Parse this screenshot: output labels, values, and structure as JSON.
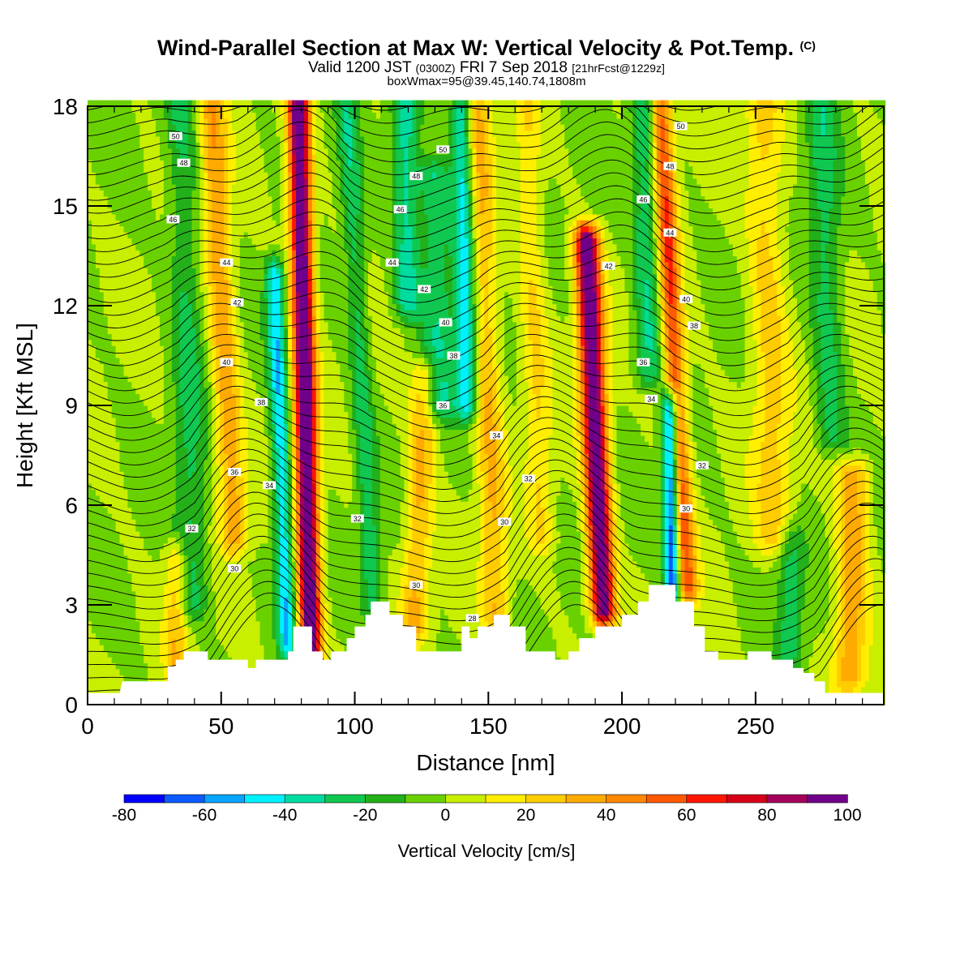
{
  "title": {
    "main": "Wind-Parallel Section at Max W: Vertical Velocity & Pot.Temp.",
    "copyright": "(C)",
    "valid_prefix": "Valid 1200 JST",
    "valid_utc": "(0300Z)",
    "valid_date": "FRI 7 Sep 2018",
    "forecast": "[21hrFcst@1229z]",
    "box": "boxWmax=95@39.45,140.74,1808m"
  },
  "chart_data": {
    "type": "heatmap",
    "xlabel": "Distance [nm]",
    "ylabel": "Height [Kft MSL]",
    "xlim": [
      0,
      298
    ],
    "ylim": [
      0,
      18
    ],
    "x_ticks": [
      0,
      50,
      100,
      150,
      200,
      250
    ],
    "y_ticks": [
      0,
      3,
      6,
      9,
      12,
      15,
      18
    ],
    "colorbar": {
      "label": "Vertical Velocity [cm/s]",
      "tick_values": [
        -80,
        -60,
        -40,
        -20,
        0,
        20,
        40,
        60,
        80,
        100
      ],
      "levels": [
        -80,
        -70,
        -60,
        -50,
        -40,
        -30,
        -20,
        -10,
        0,
        10,
        20,
        30,
        40,
        50,
        60,
        70,
        80,
        90,
        100
      ],
      "colors": [
        "#0000ff",
        "#0a5aff",
        "#08a4ff",
        "#00f0ff",
        "#00dca0",
        "#10c850",
        "#23b01a",
        "#6ad100",
        "#c8ee00",
        "#ffee00",
        "#ffcc00",
        "#ffaa00",
        "#ff8800",
        "#ff5a00",
        "#ff1600",
        "#d70018",
        "#a4005a",
        "#70008a"
      ]
    },
    "terrain": [
      [
        0,
        0.35
      ],
      [
        12,
        0.35
      ],
      [
        13,
        0.7
      ],
      [
        30,
        0.7
      ],
      [
        30,
        0.95
      ],
      [
        35,
        0.95
      ],
      [
        30,
        0.95
      ],
      [
        30,
        1.15
      ],
      [
        33,
        1.15
      ],
      [
        33,
        1.35
      ],
      [
        36,
        1.35
      ],
      [
        36,
        1.6
      ],
      [
        45,
        1.6
      ],
      [
        45,
        1.35
      ],
      [
        60,
        1.35
      ],
      [
        60,
        1.1
      ],
      [
        63,
        1.1
      ],
      [
        63,
        1.35
      ],
      [
        75,
        1.35
      ],
      [
        75,
        1.6
      ],
      [
        77,
        1.6
      ],
      [
        77,
        2.35
      ],
      [
        84,
        2.35
      ],
      [
        84,
        1.6
      ],
      [
        88,
        1.6
      ],
      [
        88,
        1.35
      ],
      [
        91,
        1.35
      ],
      [
        91,
        1.6
      ],
      [
        97,
        1.6
      ],
      [
        97,
        2.0
      ],
      [
        100,
        2.0
      ],
      [
        100,
        2.35
      ],
      [
        104,
        2.35
      ],
      [
        104,
        2.7
      ],
      [
        106,
        2.7
      ],
      [
        106,
        3.1
      ],
      [
        113,
        3.1
      ],
      [
        113,
        2.7
      ],
      [
        118,
        2.7
      ],
      [
        118,
        2.35
      ],
      [
        123,
        2.35
      ],
      [
        123,
        1.6
      ],
      [
        140,
        1.6
      ],
      [
        140,
        2.35
      ],
      [
        143,
        2.35
      ],
      [
        143,
        2.0
      ],
      [
        146,
        2.0
      ],
      [
        146,
        2.35
      ],
      [
        152,
        2.35
      ],
      [
        152,
        2.7
      ],
      [
        158,
        2.7
      ],
      [
        158,
        2.35
      ],
      [
        164,
        2.35
      ],
      [
        164,
        1.6
      ],
      [
        175,
        1.6
      ],
      [
        175,
        1.35
      ],
      [
        180,
        1.35
      ],
      [
        180,
        1.6
      ],
      [
        184,
        1.6
      ],
      [
        184,
        2.0
      ],
      [
        190,
        2.0
      ],
      [
        190,
        2.35
      ],
      [
        200,
        2.35
      ],
      [
        200,
        2.7
      ],
      [
        206,
        2.7
      ],
      [
        206,
        3.1
      ],
      [
        210,
        3.1
      ],
      [
        210,
        3.6
      ],
      [
        220,
        3.6
      ],
      [
        220,
        3.1
      ],
      [
        227,
        3.1
      ],
      [
        227,
        2.35
      ],
      [
        231,
        2.35
      ],
      [
        231,
        1.6
      ],
      [
        236,
        1.6
      ],
      [
        236,
        1.35
      ],
      [
        247,
        1.35
      ],
      [
        247,
        1.6
      ],
      [
        256,
        1.6
      ],
      [
        256,
        1.35
      ],
      [
        264,
        1.35
      ],
      [
        264,
        1.1
      ],
      [
        268,
        1.1
      ],
      [
        268,
        0.95
      ],
      [
        272,
        0.95
      ],
      [
        272,
        0.7
      ],
      [
        276,
        0.7
      ],
      [
        276,
        0.35
      ],
      [
        298,
        0.35
      ]
    ],
    "w_features": [
      {
        "x": 84,
        "y0": 0,
        "y1": 18,
        "lean": 5,
        "w": 4.0,
        "amp": 110
      },
      {
        "x": 193,
        "y0": 2.8,
        "y1": 14,
        "lean": 10,
        "w": 4.5,
        "amp": 105
      },
      {
        "x": 224,
        "y0": 3.5,
        "y1": 18,
        "lean": 12,
        "w": 4.0,
        "amp": 60
      },
      {
        "x": 55,
        "y0": 5,
        "y1": 18,
        "lean": 12,
        "w": 5.0,
        "amp": 38
      },
      {
        "x": 122,
        "y0": 2.3,
        "y1": 10,
        "lean": -10,
        "w": 5.0,
        "amp": 32
      },
      {
        "x": 153,
        "y0": 2.5,
        "y1": 18,
        "lean": 8,
        "w": 5.0,
        "amp": 30
      },
      {
        "x": 285,
        "y0": 0.8,
        "y1": 7,
        "lean": -5,
        "w": 6.0,
        "amp": 38
      },
      {
        "x": 170,
        "y0": 5,
        "y1": 18,
        "lean": 8,
        "w": 5.0,
        "amp": 20
      },
      {
        "x": 257,
        "y0": 5,
        "y1": 18,
        "lean": 6,
        "w": 7.0,
        "amp": 24
      },
      {
        "x": 33,
        "y0": 0.8,
        "y1": 4.5,
        "lean": 0,
        "w": 4.0,
        "amp": 25
      },
      {
        "x": 75,
        "y0": 1.8,
        "y1": 13,
        "lean": 8,
        "w": 3.5,
        "amp": -48
      },
      {
        "x": 219,
        "y0": 3.5,
        "y1": 9,
        "lean": 4,
        "w": 3.0,
        "amp": -80
      },
      {
        "x": 142,
        "y0": 9,
        "y1": 18,
        "lean": 4,
        "w": 4.0,
        "amp": -45
      },
      {
        "x": 132,
        "y0": 9,
        "y1": 16,
        "lean": 6,
        "w": 6.0,
        "amp": -30
      },
      {
        "x": 120,
        "y0": 12,
        "y1": 18,
        "lean": 4,
        "w": 5.0,
        "amp": -35
      },
      {
        "x": 107,
        "y0": 3,
        "y1": 18,
        "lean": 12,
        "w": 4.0,
        "amp": -25
      },
      {
        "x": 40,
        "y0": 3,
        "y1": 18,
        "lean": 6,
        "w": 6.0,
        "amp": -22
      },
      {
        "x": 210,
        "y0": 10,
        "y1": 18,
        "lean": 4,
        "w": 5.0,
        "amp": -30
      },
      {
        "x": 263,
        "y0": 1.5,
        "y1": 5,
        "lean": 0,
        "w": 5.0,
        "amp": -25
      },
      {
        "x": 278,
        "y0": 8,
        "y1": 18,
        "lean": 6,
        "w": 6.0,
        "amp": -24
      }
    ],
    "theta_labels": [
      {
        "value": "50",
        "x": 33,
        "y": 17.1
      },
      {
        "value": "48",
        "x": 36,
        "y": 16.3
      },
      {
        "value": "46",
        "x": 32,
        "y": 14.6
      },
      {
        "value": "44",
        "x": 52,
        "y": 13.3
      },
      {
        "value": "42",
        "x": 56,
        "y": 12.1
      },
      {
        "value": "40",
        "x": 52,
        "y": 10.3
      },
      {
        "value": "38",
        "x": 65,
        "y": 9.1
      },
      {
        "value": "36",
        "x": 55,
        "y": 7.0
      },
      {
        "value": "34",
        "x": 68,
        "y": 6.6
      },
      {
        "value": "32",
        "x": 39,
        "y": 5.3
      },
      {
        "value": "30",
        "x": 55,
        "y": 4.1
      },
      {
        "value": "50",
        "x": 133,
        "y": 16.7
      },
      {
        "value": "48",
        "x": 123,
        "y": 15.9
      },
      {
        "value": "46",
        "x": 117,
        "y": 14.9
      },
      {
        "value": "44",
        "x": 114,
        "y": 13.3
      },
      {
        "value": "42",
        "x": 126,
        "y": 12.5
      },
      {
        "value": "40",
        "x": 134,
        "y": 11.5
      },
      {
        "value": "38",
        "x": 137,
        "y": 10.5
      },
      {
        "value": "36",
        "x": 133,
        "y": 9.0
      },
      {
        "value": "34",
        "x": 153,
        "y": 8.1
      },
      {
        "value": "32",
        "x": 165,
        "y": 6.8
      },
      {
        "value": "30",
        "x": 156,
        "y": 5.5
      },
      {
        "value": "32",
        "x": 101,
        "y": 5.6
      },
      {
        "value": "30",
        "x": 123,
        "y": 3.6
      },
      {
        "value": "28",
        "x": 144,
        "y": 2.6
      },
      {
        "value": "50",
        "x": 222,
        "y": 17.4
      },
      {
        "value": "48",
        "x": 218,
        "y": 16.2
      },
      {
        "value": "46",
        "x": 208,
        "y": 15.2
      },
      {
        "value": "44",
        "x": 218,
        "y": 14.2
      },
      {
        "value": "42",
        "x": 195,
        "y": 13.2
      },
      {
        "value": "40",
        "x": 224,
        "y": 12.2
      },
      {
        "value": "38",
        "x": 227,
        "y": 11.4
      },
      {
        "value": "36",
        "x": 208,
        "y": 10.3
      },
      {
        "value": "34",
        "x": 211,
        "y": 9.2
      },
      {
        "value": "32",
        "x": 230,
        "y": 7.2
      },
      {
        "value": "30",
        "x": 224,
        "y": 5.9
      }
    ]
  }
}
